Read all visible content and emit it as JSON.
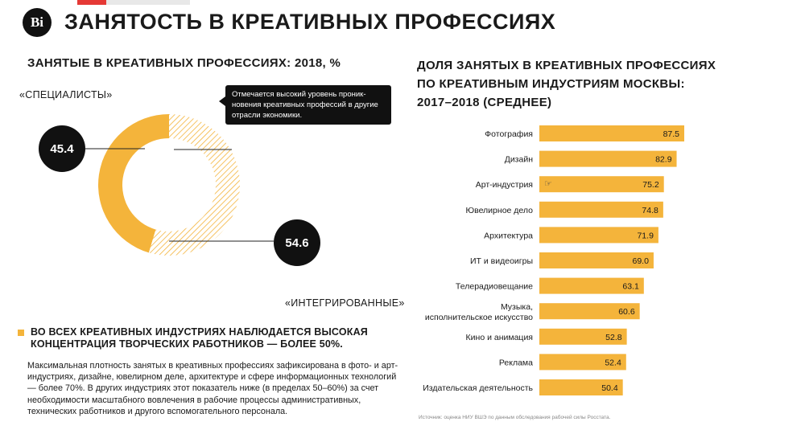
{
  "header": {
    "logo_text": "Ві",
    "title": "ЗАНЯТОСТЬ В КРЕАТИВНЫХ ПРОФЕССИЯХ"
  },
  "left": {
    "heading": "ЗАНЯТЫЕ В КРЕАТИВНЫХ ПРОФЕССИЯХ: 2018, %",
    "callout": "Отмечается высокий уровень проник-новения креативных профессий в другие отрасли экономики.",
    "highlight": "ВО ВСЕХ КРЕАТИВНЫХ ИНДУСТРИЯХ НАБЛЮДАЕТСЯ ВЫСОКАЯ КОНЦЕНТРАЦИЯ ТВОРЧЕСКИХ РАБОТНИКОВ — БОЛЕЕ 50%.",
    "body": "Максимальная плотность занятых в креативных профессиях зафиксирована в фото- и арт-индустриях, дизайне, ювелирном деле, архитектуре и сфере информационных технологий — более 70%. В других индустриях этот показатель ниже (в пределах 50–60%) за счет необходимости масштабного вовлечения в рабочие процессы административных, технических работников и другого вспомогательного персонала."
  },
  "right": {
    "heading_lines": [
      "ДОЛЯ ЗАНЯТЫХ В КРЕАТИВНЫХ ПРОФЕССИЯХ",
      "ПО КРЕАТИВНЫМ ИНДУСТРИЯМ МОСКВЫ:",
      "2017–2018 (СРЕДНЕЕ)"
    ],
    "source": "Источник: оценка НИУ ВШЭ по данным обследования рабочей силы Росстата."
  },
  "colors": {
    "accent": "#f4b43b",
    "hatch": "#f4b43b",
    "dark": "#111111"
  },
  "chart_data": [
    {
      "type": "pie",
      "variant": "donut",
      "slices": [
        {
          "label": "«СПЕЦИАЛИСТЫ»",
          "value": 45.4,
          "value_text": "45.4",
          "fill": "solid"
        },
        {
          "label": "«ИНТЕГРИРОВАННЫЕ»",
          "value": 54.6,
          "value_text": "54.6",
          "fill": "hatched"
        }
      ]
    },
    {
      "type": "bar",
      "orientation": "horizontal",
      "categories": [
        "Фотография",
        "Дизайн",
        "Арт-индустрия",
        "Ювелирное дело",
        "Архитектура",
        "ИТ и видеоигры",
        "Телерадиовещание",
        "Музыка, исполнительское искусство",
        "Кино и анимация",
        "Реклама",
        "Издательская деятельность"
      ],
      "values": [
        87.5,
        82.9,
        75.2,
        74.8,
        71.9,
        69.0,
        63.1,
        60.6,
        52.8,
        52.4,
        50.4
      ],
      "value_labels": [
        "87.5",
        "82.9",
        "75.2",
        "74.8",
        "71.9",
        "69.0",
        "63.1",
        "60.6",
        "52.8",
        "52.4",
        "50.4"
      ],
      "xlim": [
        0,
        87.5
      ],
      "grid": false,
      "legend": "none"
    }
  ]
}
